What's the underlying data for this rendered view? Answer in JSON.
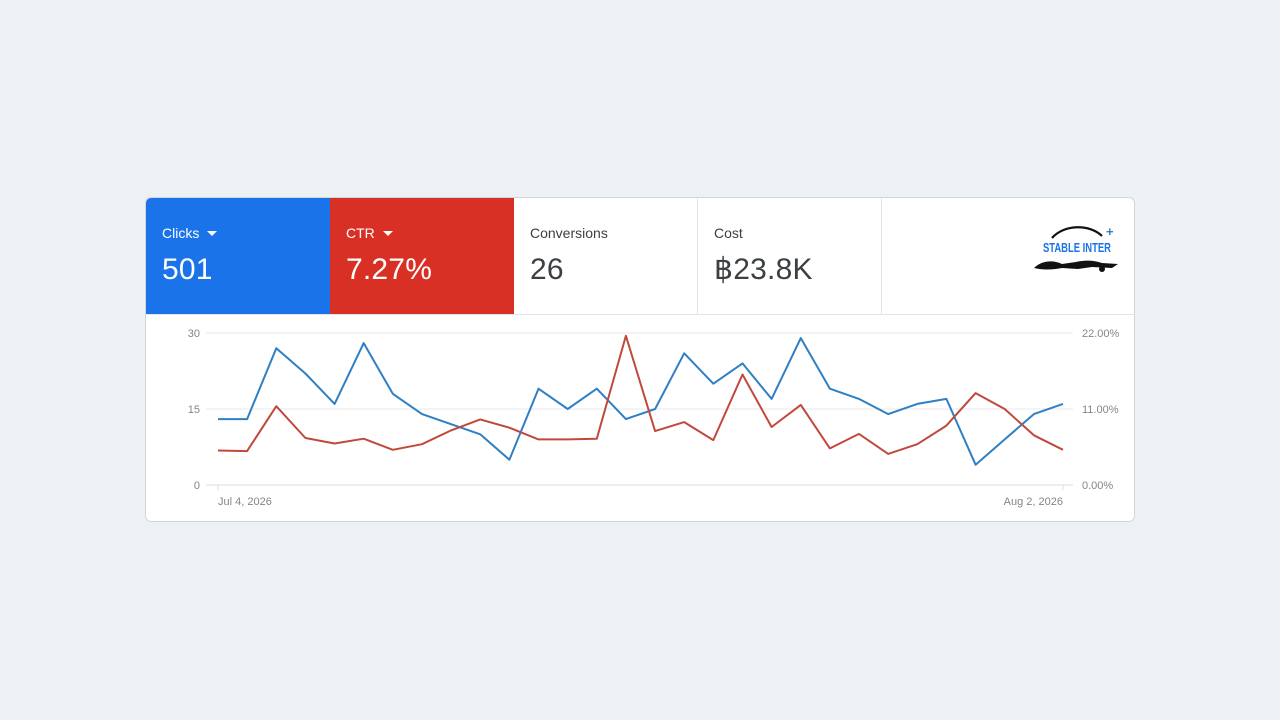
{
  "metrics": [
    {
      "label": "Clicks",
      "value": "501",
      "selected": true,
      "color": "#1a73e8"
    },
    {
      "label": "CTR",
      "value": "7.27%",
      "selected": true,
      "color": "#d93025"
    },
    {
      "label": "Conversions",
      "value": "26",
      "selected": false
    },
    {
      "label": "Cost",
      "value": "฿23.8K",
      "selected": false
    }
  ],
  "logo": {
    "text": "STABLE INTER",
    "plus": "+"
  },
  "chart_data": {
    "type": "line",
    "x_start_label": "Jul 4, 2026",
    "x_end_label": "Aug 2, 2026",
    "left_axis": {
      "ticks": [
        "0",
        "15",
        "30"
      ],
      "ylim": [
        0,
        30
      ]
    },
    "right_axis": {
      "ticks": [
        "0.00%",
        "11.00%",
        "22.00%"
      ],
      "ylim": [
        0,
        22
      ]
    },
    "grid": true,
    "series": [
      {
        "name": "Clicks",
        "axis": "left",
        "color": "#2f7fc4",
        "values": [
          13,
          13,
          27,
          22,
          16,
          28,
          18,
          14,
          12,
          10,
          5,
          19,
          15,
          19,
          13,
          15,
          26,
          20,
          24,
          17,
          29,
          19,
          17,
          14,
          16,
          17,
          4,
          9,
          14,
          16
        ]
      },
      {
        "name": "CTR",
        "axis": "right",
        "color": "#c0483d",
        "values": [
          5.0,
          4.9,
          11.4,
          6.8,
          6.0,
          6.7,
          5.1,
          5.9,
          7.9,
          9.5,
          8.3,
          6.6,
          6.6,
          6.7,
          21.6,
          7.8,
          9.1,
          6.5,
          16.0,
          8.4,
          11.6,
          5.3,
          7.4,
          4.5,
          5.9,
          8.6,
          13.3,
          11.0,
          7.2,
          5.1
        ]
      }
    ]
  }
}
